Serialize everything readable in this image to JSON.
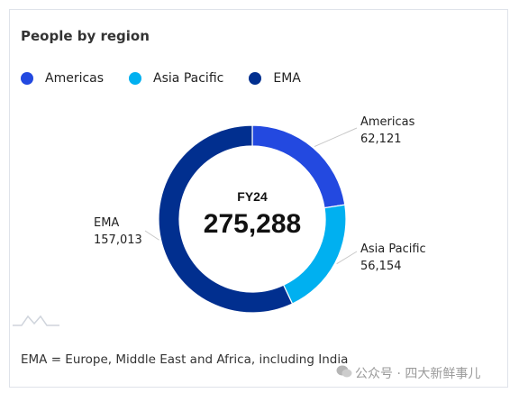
{
  "chart_data": {
    "type": "pie",
    "donut": true,
    "title": "People by region",
    "center_label": "FY24",
    "center_value": "275,288",
    "legend_position": "top",
    "slices": [
      {
        "name": "Americas",
        "value": 62121,
        "label": "62,121",
        "color": "#2349e0"
      },
      {
        "name": "Asia Pacific",
        "value": 56154,
        "label": "56,154",
        "color": "#00b0f0"
      },
      {
        "name": "EMA",
        "value": 157013,
        "label": "157,013",
        "color": "#012f8f"
      }
    ]
  },
  "footnote": "EMA = Europe, Middle East and Africa, including India",
  "watermark": "公众号 · 四大新鲜事儿"
}
